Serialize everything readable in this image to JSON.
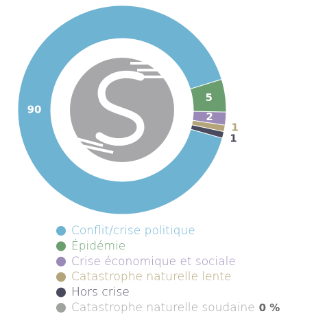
{
  "chart_data": {
    "type": "donut",
    "categories": [
      "Conflit/crise politique",
      "Épidémie",
      "Crise économique et sociale",
      "Catastrophe naturelle lente",
      "Hors crise",
      "Catastrophe naturelle soudaine"
    ],
    "values": [
      90,
      5,
      2,
      1,
      1,
      0
    ],
    "value_labels": [
      "90",
      "5",
      "2",
      "1",
      "1",
      "0 %"
    ],
    "colors": [
      "#6fb3d2",
      "#6b9e6e",
      "#9b8ab8",
      "#b4a47a",
      "#4a4a5e",
      "#a0a3a0"
    ]
  }
}
